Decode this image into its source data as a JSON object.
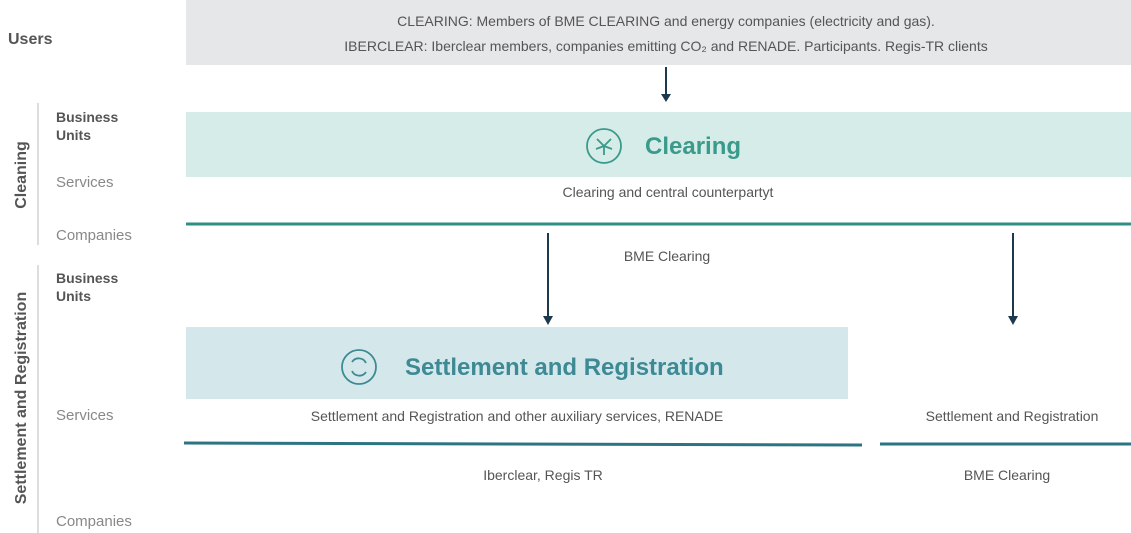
{
  "users": {
    "label": "Users",
    "lines": [
      "CLEARING: Members of BME CLEARING and energy companies (electricity and gas).",
      "IBERCLEAR: Iberclear members, companies emitting CO₂ and RENADE. Participants. Regis-TR clients"
    ]
  },
  "rows": [
    {
      "label": "Cleaning",
      "levels": [
        "Business Units",
        "Services",
        "Companies"
      ]
    },
    {
      "label": "Settlement and Registration",
      "levels": [
        "Business Units",
        "Services",
        "Companies"
      ]
    }
  ],
  "clearing": {
    "title": "Clearing",
    "service": "Clearing and central counterpartyt",
    "company": "BME Clearing"
  },
  "settlement": {
    "title": "Settlement and Registration",
    "service": "Settlement and Registration and other auxiliary services, RENADE",
    "company": "Iberclear, Regis TR"
  },
  "settlement_right": {
    "service": "Settlement and Registration",
    "company": "BME Clearing"
  }
}
